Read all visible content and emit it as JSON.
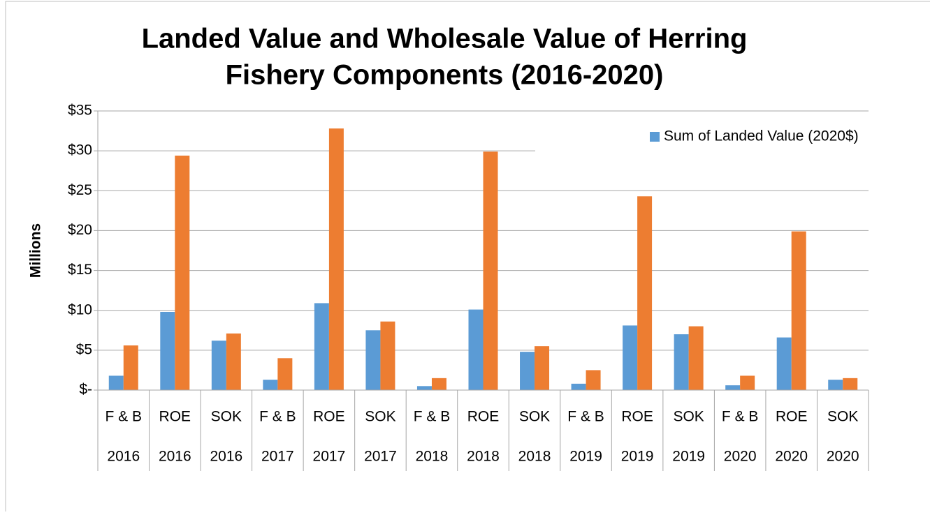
{
  "chart_data": {
    "type": "bar",
    "title": [
      "Landed Value and Wholesale Value of Herring",
      "Fishery Components (2016-2020)"
    ],
    "y_label": "Millions",
    "categories": [
      "F & B",
      "ROE",
      "SOK",
      "F & B",
      "ROE",
      "SOK",
      "F & B",
      "ROE",
      "SOK",
      "F & B",
      "ROE",
      "SOK",
      "F & B",
      "ROE",
      "SOK"
    ],
    "years": [
      "2016",
      "2016",
      "2016",
      "2017",
      "2017",
      "2017",
      "2018",
      "2018",
      "2018",
      "2019",
      "2019",
      "2019",
      "2020",
      "2020",
      "2020"
    ],
    "series": [
      {
        "name": "Sum of Landed Value (2020$)",
        "color": "#5b9bd5",
        "values": [
          1.8,
          9.8,
          6.2,
          1.3,
          10.9,
          7.5,
          0.5,
          10.1,
          4.8,
          0.8,
          8.1,
          7.0,
          0.6,
          6.6,
          1.3
        ]
      },
      {
        "color": "#ed7d31",
        "values": [
          5.6,
          29.4,
          7.1,
          4.0,
          32.8,
          8.6,
          1.5,
          29.9,
          5.5,
          2.5,
          24.3,
          8.0,
          1.8,
          19.9,
          1.5
        ]
      }
    ],
    "ylim": [
      0,
      35
    ],
    "yticks": [
      {
        "value": 0,
        "label": "$-"
      },
      {
        "value": 5,
        "label": "$5"
      },
      {
        "value": 10,
        "label": "$10"
      },
      {
        "value": 15,
        "label": "$15"
      },
      {
        "value": 20,
        "label": "$20"
      },
      {
        "value": 25,
        "label": "$25"
      },
      {
        "value": 30,
        "label": "$30"
      },
      {
        "value": 35,
        "label": "$35"
      }
    ],
    "grid": true,
    "legend": "top-right"
  }
}
